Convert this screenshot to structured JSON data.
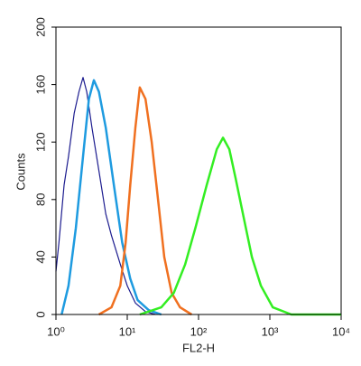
{
  "chart_data": {
    "type": "line",
    "xlabel": "FL2-H",
    "ylabel": "Counts",
    "xscale": "log",
    "xlim": [
      1,
      10000
    ],
    "xticks": [
      {
        "value": 1,
        "label": "10⁰"
      },
      {
        "value": 10,
        "label": "10¹"
      },
      {
        "value": 100,
        "label": "10²"
      },
      {
        "value": 1000,
        "label": "10³"
      },
      {
        "value": 10000,
        "label": "10⁴"
      }
    ],
    "ylim": [
      0,
      200
    ],
    "yticks": [
      0,
      40,
      80,
      120,
      160,
      200
    ],
    "series": [
      {
        "color": "#1c1c8f",
        "x": [
          1,
          1.1,
          1.3,
          1.5,
          1.8,
          2.1,
          2.4,
          2.7,
          3.2,
          4,
          5,
          6,
          8,
          10,
          13,
          18,
          25
        ],
        "values": [
          30,
          50,
          90,
          110,
          140,
          155,
          165,
          155,
          130,
          100,
          70,
          55,
          35,
          20,
          8,
          2,
          0
        ]
      },
      {
        "color": "#1e9be0",
        "x": [
          1.2,
          1.5,
          1.9,
          2.4,
          2.9,
          3.4,
          4,
          5,
          6.5,
          8.5,
          11,
          14,
          20,
          30
        ],
        "values": [
          0,
          20,
          60,
          110,
          150,
          163,
          155,
          130,
          90,
          50,
          25,
          10,
          3,
          0
        ]
      },
      {
        "color": "#f07020",
        "x": [
          4,
          6,
          8,
          9.5,
          11,
          13,
          15,
          18,
          22,
          27,
          33,
          42,
          55,
          80
        ],
        "values": [
          0,
          5,
          20,
          50,
          90,
          130,
          158,
          150,
          120,
          80,
          40,
          15,
          5,
          0
        ]
      },
      {
        "color": "#33ee22",
        "x": [
          15,
          30,
          45,
          65,
          90,
          130,
          180,
          220,
          270,
          330,
          420,
          560,
          750,
          1100,
          2000,
          10000
        ],
        "values": [
          0,
          5,
          15,
          35,
          60,
          90,
          115,
          123,
          115,
          95,
          70,
          40,
          20,
          5,
          0,
          0
        ]
      }
    ]
  }
}
